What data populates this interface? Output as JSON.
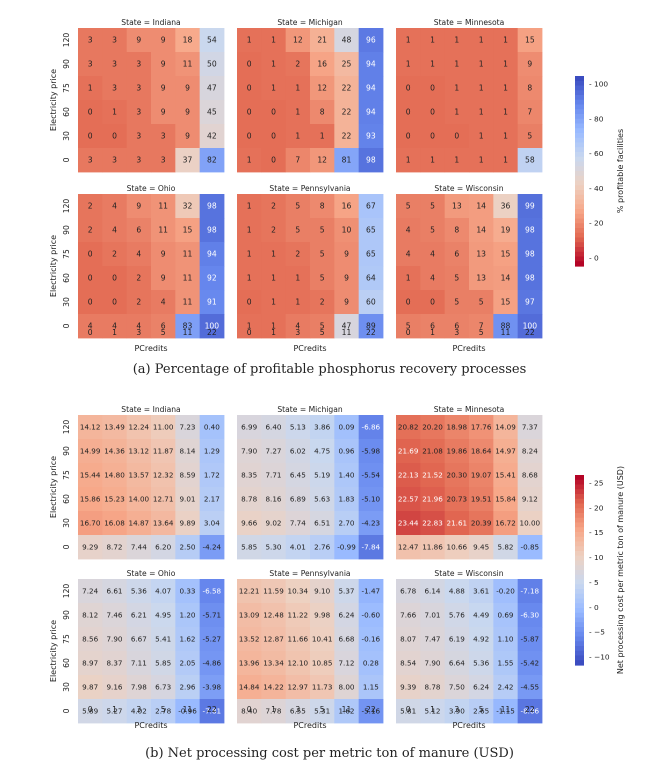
{
  "panels": [
    {
      "id": "a",
      "caption": "(a) Percentage of profitable phosphorus recovery processes",
      "chart_data": {
        "type": "heatmap",
        "xlabel": "PCredits",
        "ylabel": "Electricity price",
        "x_ticks": [
          "0",
          "1",
          "3",
          "5",
          "11",
          "22"
        ],
        "y_ticks": [
          "120",
          "90",
          "75",
          "60",
          "30",
          "0"
        ],
        "colorbar": {
          "label": "% profitable facilities",
          "ticks": [
            "100",
            "80",
            "60",
            "40",
            "20",
            "0"
          ],
          "vmin": -20,
          "vmax": 110,
          "ramp": "coolwarm_r"
        },
        "facets": [
          {
            "title": "State = Indiana",
            "values": [
              [
                3,
                3,
                9,
                9,
                18,
                54
              ],
              [
                3,
                3,
                3,
                9,
                11,
                50
              ],
              [
                1,
                3,
                3,
                9,
                9,
                47
              ],
              [
                0,
                1,
                3,
                9,
                9,
                45
              ],
              [
                0,
                0,
                3,
                3,
                9,
                42
              ],
              [
                3,
                3,
                3,
                3,
                37,
                82
              ]
            ]
          },
          {
            "title": "State = Michigan",
            "values": [
              [
                1,
                1,
                12,
                21,
                48,
                96
              ],
              [
                0,
                1,
                2,
                16,
                25,
                94
              ],
              [
                0,
                1,
                1,
                12,
                22,
                94
              ],
              [
                0,
                0,
                1,
                8,
                22,
                94
              ],
              [
                0,
                0,
                1,
                1,
                22,
                93
              ],
              [
                1,
                0,
                7,
                12,
                81,
                98
              ]
            ]
          },
          {
            "title": "State = Minnesota",
            "values": [
              [
                1,
                1,
                1,
                1,
                1,
                15
              ],
              [
                1,
                1,
                1,
                1,
                1,
                9
              ],
              [
                0,
                0,
                1,
                1,
                1,
                8
              ],
              [
                0,
                0,
                1,
                1,
                1,
                7
              ],
              [
                0,
                0,
                0,
                1,
                1,
                5
              ],
              [
                1,
                1,
                1,
                1,
                1,
                58
              ]
            ]
          },
          {
            "title": "State = Ohio",
            "values": [
              [
                2,
                4,
                9,
                11,
                32,
                98
              ],
              [
                2,
                4,
                6,
                11,
                15,
                98
              ],
              [
                0,
                2,
                4,
                9,
                11,
                94
              ],
              [
                0,
                0,
                2,
                9,
                11,
                92
              ],
              [
                0,
                0,
                2,
                4,
                11,
                91
              ],
              [
                4,
                4,
                4,
                6,
                83,
                100
              ]
            ]
          },
          {
            "title": "State = Pennsylvania",
            "values": [
              [
                1,
                2,
                5,
                8,
                16,
                67
              ],
              [
                1,
                2,
                5,
                5,
                10,
                65
              ],
              [
                1,
                1,
                2,
                5,
                9,
                65
              ],
              [
                1,
                1,
                1,
                5,
                9,
                64
              ],
              [
                0,
                1,
                1,
                2,
                9,
                60
              ],
              [
                1,
                1,
                4,
                5,
                47,
                89
              ]
            ]
          },
          {
            "title": "State = Wisconsin",
            "values": [
              [
                5,
                5,
                13,
                14,
                36,
                99
              ],
              [
                4,
                5,
                8,
                14,
                19,
                98
              ],
              [
                4,
                4,
                6,
                13,
                15,
                98
              ],
              [
                1,
                4,
                5,
                13,
                14,
                98
              ],
              [
                0,
                0,
                5,
                5,
                15,
                97
              ],
              [
                5,
                6,
                6,
                7,
                88,
                100
              ]
            ]
          }
        ]
      }
    },
    {
      "id": "b",
      "caption": "(b) Net processing cost per metric ton of manure (USD)",
      "chart_data": {
        "type": "heatmap",
        "xlabel": "PCredits",
        "ylabel": "Electricity price",
        "x_ticks": [
          "0",
          "1",
          "3",
          "5",
          "11",
          "22"
        ],
        "y_ticks": [
          "120",
          "90",
          "75",
          "60",
          "30",
          "0"
        ],
        "colorbar": {
          "label": "Net processing cost per metric ton of manure (USD)",
          "ticks": [
            "25",
            "20",
            "15",
            "10",
            "5",
            "0",
            "−5",
            "−10"
          ],
          "vmin": -12,
          "vmax": 27,
          "ramp": "coolwarm"
        },
        "facets": [
          {
            "title": "State = Indiana",
            "values": [
              [
                14.12,
                13.49,
                12.24,
                11.0,
                7.23,
                0.4
              ],
              [
                14.99,
                14.36,
                13.12,
                11.87,
                8.14,
                1.29
              ],
              [
                15.44,
                14.8,
                13.57,
                12.32,
                8.59,
                1.72
              ],
              [
                15.86,
                15.23,
                14.0,
                12.71,
                9.01,
                2.17
              ],
              [
                16.7,
                16.08,
                14.87,
                13.64,
                9.89,
                3.04
              ],
              [
                9.29,
                8.72,
                7.44,
                6.2,
                2.5,
                -4.24
              ]
            ]
          },
          {
            "title": "State = Michigan",
            "values": [
              [
                6.99,
                6.4,
                5.13,
                3.86,
                0.09,
                -6.86
              ],
              [
                7.9,
                7.27,
                6.02,
                4.75,
                0.96,
                -5.98
              ],
              [
                8.35,
                7.71,
                6.45,
                5.19,
                1.4,
                -5.54
              ],
              [
                8.78,
                8.16,
                6.89,
                5.63,
                1.83,
                -5.1
              ],
              [
                9.66,
                9.02,
                7.74,
                6.51,
                2.7,
                -4.23
              ],
              [
                5.85,
                5.3,
                4.01,
                2.76,
                -0.99,
                -7.84
              ]
            ]
          },
          {
            "title": "State = Minnesota",
            "values": [
              [
                20.82,
                20.2,
                18.98,
                17.76,
                14.09,
                7.37
              ],
              [
                21.69,
                21.08,
                19.86,
                18.64,
                14.97,
                8.24
              ],
              [
                22.13,
                21.52,
                20.3,
                19.07,
                15.41,
                8.68
              ],
              [
                22.57,
                21.96,
                20.73,
                19.51,
                15.84,
                9.12
              ],
              [
                23.44,
                22.83,
                21.61,
                20.39,
                16.72,
                10.0
              ],
              [
                12.47,
                11.86,
                10.66,
                9.45,
                5.82,
                -0.85
              ]
            ]
          },
          {
            "title": "State = Ohio",
            "values": [
              [
                7.24,
                6.61,
                5.36,
                4.07,
                0.33,
                -6.58
              ],
              [
                8.12,
                7.46,
                6.21,
                4.95,
                1.2,
                -5.71
              ],
              [
                8.56,
                7.9,
                6.67,
                5.41,
                1.62,
                -5.27
              ],
              [
                8.97,
                8.37,
                7.11,
                5.85,
                2.05,
                -4.86
              ],
              [
                9.87,
                9.16,
                7.98,
                6.73,
                2.96,
                -3.98
              ],
              [
                5.89,
                5.27,
                4.02,
                2.78,
                -0.96,
                -7.81
              ]
            ]
          },
          {
            "title": "State = Pennsylvania",
            "values": [
              [
                12.21,
                11.59,
                10.34,
                9.1,
                5.37,
                -1.47
              ],
              [
                13.09,
                12.48,
                11.22,
                9.98,
                6.24,
                -0.6
              ],
              [
                13.52,
                12.87,
                11.66,
                10.41,
                6.68,
                -0.16
              ],
              [
                13.96,
                13.34,
                12.1,
                10.85,
                7.12,
                0.28
              ],
              [
                14.84,
                14.22,
                12.97,
                11.73,
                8.0,
                1.15
              ],
              [
                8.4,
                7.78,
                6.55,
                5.31,
                1.62,
                -5.16
              ]
            ]
          },
          {
            "title": "State = Wisconsin",
            "values": [
              [
                6.78,
                6.14,
                4.88,
                3.61,
                -0.2,
                -7.18
              ],
              [
                7.66,
                7.01,
                5.76,
                4.49,
                0.69,
                -6.3
              ],
              [
                8.07,
                7.47,
                6.19,
                4.92,
                1.1,
                -5.87
              ],
              [
                8.54,
                7.9,
                6.64,
                5.36,
                1.55,
                -5.42
              ],
              [
                9.39,
                8.78,
                7.5,
                6.24,
                2.42,
                -4.55
              ],
              [
                5.81,
                5.12,
                3.9,
                2.65,
                -1.15,
                -8.06
              ]
            ]
          }
        ]
      }
    }
  ],
  "colors": {
    "ramp": [
      "#3b4cc0",
      "#6788ee",
      "#9abbff",
      "#c9d8ef",
      "#edd1c2",
      "#f7a889",
      "#e26952",
      "#b40426"
    ],
    "text_dark": "#222222",
    "text_light": "#ffffff"
  }
}
